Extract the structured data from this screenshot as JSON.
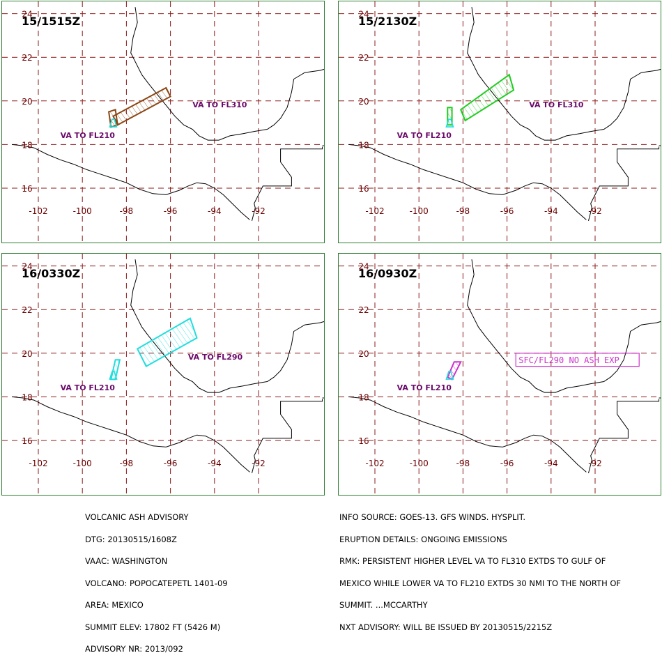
{
  "panels": [
    {
      "id": "p1",
      "time": "15/1515Z",
      "color": "#8B4513",
      "labels": [
        {
          "text": "VA TO FL310",
          "lon": -95.0,
          "lat": 19.7
        },
        {
          "text": "VA TO FL210",
          "lon": -101.0,
          "lat": 18.3
        }
      ],
      "ash_polygons": [
        [
          [
            -98.6,
            19.3
          ],
          [
            -96.2,
            20.6
          ],
          [
            -96.0,
            20.2
          ],
          [
            -98.4,
            18.9
          ]
        ],
        [
          [
            -98.8,
            19.5
          ],
          [
            -98.5,
            19.6
          ],
          [
            -98.4,
            18.9
          ],
          [
            -98.7,
            18.8
          ]
        ]
      ],
      "ash_color": "#8B4513",
      "tagged_box": null
    },
    {
      "id": "p2",
      "time": "15/2130Z",
      "color": "#22cc22",
      "labels": [
        {
          "text": "VA TO FL310",
          "lon": -95.0,
          "lat": 19.7
        },
        {
          "text": "VA TO FL210",
          "lon": -101.0,
          "lat": 18.3
        }
      ],
      "ash_polygons": [
        [
          [
            -98.1,
            19.6
          ],
          [
            -95.9,
            21.2
          ],
          [
            -95.7,
            20.5
          ],
          [
            -97.9,
            19.1
          ]
        ],
        [
          [
            -98.7,
            19.7
          ],
          [
            -98.5,
            19.7
          ],
          [
            -98.5,
            18.9
          ],
          [
            -98.7,
            18.9
          ]
        ]
      ],
      "ash_color": "#22cc22",
      "tagged_box": null
    },
    {
      "id": "p3",
      "time": "16/0330Z",
      "color": "#22dddd",
      "labels": [
        {
          "text": "VA TO FL290",
          "lon": -95.2,
          "lat": 19.7
        },
        {
          "text": "VA TO FL210",
          "lon": -101.0,
          "lat": 18.3
        }
      ],
      "ash_polygons": [
        [
          [
            -97.5,
            20.2
          ],
          [
            -95.1,
            21.6
          ],
          [
            -94.8,
            20.7
          ],
          [
            -97.1,
            19.4
          ]
        ],
        [
          [
            -98.5,
            19.7
          ],
          [
            -98.3,
            19.7
          ],
          [
            -98.5,
            18.8
          ],
          [
            -98.7,
            18.8
          ]
        ]
      ],
      "ash_color": "#22dddd",
      "tagged_box": null
    },
    {
      "id": "p4",
      "time": "16/0930Z",
      "color": "#cc33cc",
      "labels": [
        {
          "text": "VA TO FL210",
          "lon": -101.0,
          "lat": 18.3
        }
      ],
      "ash_polygons": [
        [
          [
            -98.4,
            19.6
          ],
          [
            -98.1,
            19.6
          ],
          [
            -98.5,
            18.8
          ],
          [
            -98.7,
            18.9
          ]
        ]
      ],
      "ash_color": "#cc33cc",
      "tagged_box": {
        "text": "SFC/FL290 NO ASH EXP",
        "lon1": -95.6,
        "lat1": 20.0,
        "lon2": -90.0,
        "lat2": 19.4
      }
    }
  ],
  "grid": {
    "lon_ticks": [
      -102,
      -100,
      -98,
      -96,
      -94,
      -92
    ],
    "lat_ticks": [
      16,
      18,
      20,
      22,
      24
    ],
    "lon_min": -103.2,
    "lon_max": -89.0,
    "lat_min": 14.6,
    "lat_max": 24.3,
    "grid_color": "#8B1a1a",
    "coast_color": "#000000"
  },
  "volcano": {
    "lon": -98.6,
    "lat": 19.0,
    "color": "#22dddd"
  },
  "advisory_left": [
    "VOLCANIC ASH ADVISORY",
    "DTG: 20130515/1608Z",
    "VAAC: WASHINGTON",
    "VOLCANO: POPOCATEPETL 1401-09",
    "AREA: MEXICO",
    "SUMMIT ELEV: 17802 FT (5426 M)",
    "ADVISORY NR: 2013/092"
  ],
  "advisory_right": [
    "INFO SOURCE: GOES-13. GFS WINDS. HYSPLIT.",
    "ERUPTION DETAILS: ONGOING EMISSIONS",
    "RMK: PERSISTENT HIGHER LEVEL VA TO FL310 EXTDS TO GULF OF",
    "MEXICO WHILE LOWER VA TO FL210 EXTDS 30 NMI TO THE NORTH OF",
    "SUMMIT. ...MCCARTHY",
    "NXT ADVISORY: WILL BE ISSUED BY 20130515/2215Z"
  ]
}
